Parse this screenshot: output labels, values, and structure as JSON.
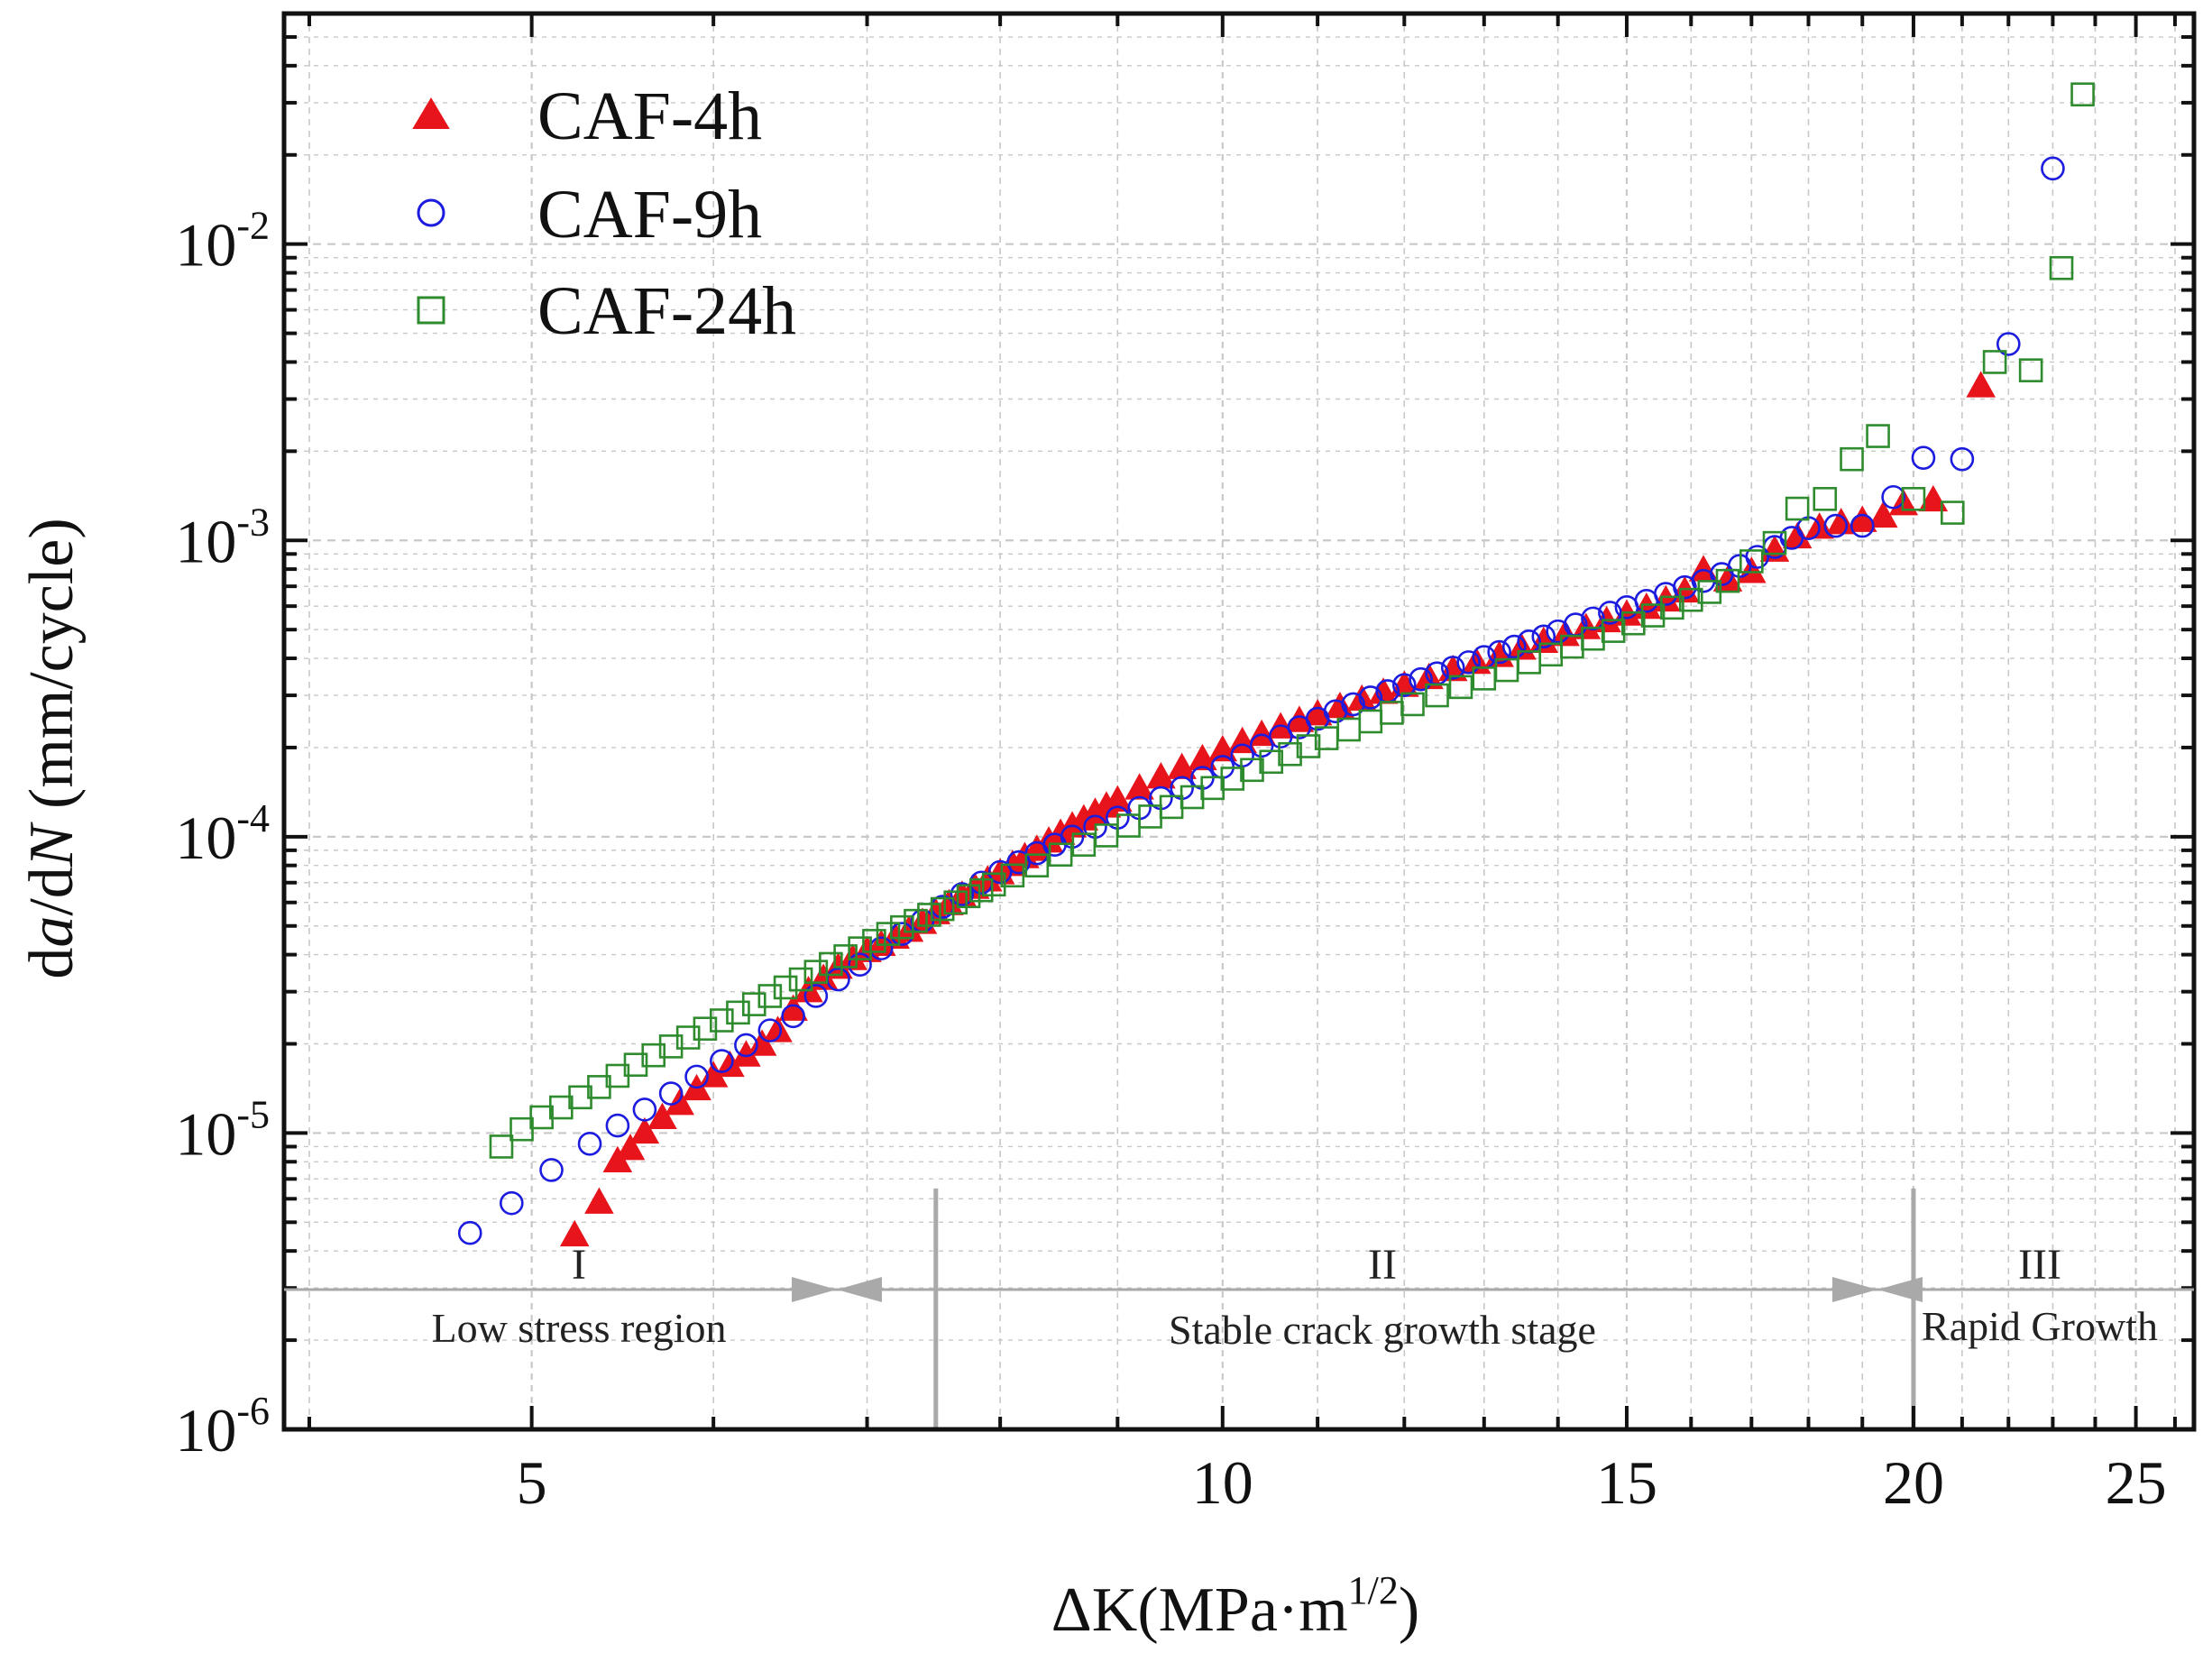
{
  "chart_data": {
    "type": "scatter",
    "x_scale": "log",
    "y_scale": "log",
    "xlim": [
      3.9,
      26.5
    ],
    "ylim": [
      1e-06,
      0.06
    ],
    "xlabel": {
      "main": "ΔK(MPa·m",
      "sup": "1/2",
      "close": ")"
    },
    "ylabel": {
      "d": "d",
      "a": "a",
      "mid": "/d",
      "N": "N",
      "units": " (mm/cycle)"
    },
    "x_ticks": [
      {
        "value": 5,
        "label": "5"
      },
      {
        "value": 10,
        "label": "10"
      },
      {
        "value": 15,
        "label": "15"
      },
      {
        "value": 20,
        "label": "20"
      },
      {
        "value": 25,
        "label": "25"
      }
    ],
    "y_ticks": [
      {
        "value": 1e-06,
        "base": "10",
        "exp": "-6"
      },
      {
        "value": 1e-05,
        "base": "10",
        "exp": "-5"
      },
      {
        "value": 0.0001,
        "base": "10",
        "exp": "-4"
      },
      {
        "value": 0.001,
        "base": "10",
        "exp": "-3"
      },
      {
        "value": 0.01,
        "base": "10",
        "exp": "-2"
      }
    ],
    "grid": true,
    "legend_position": "top-left",
    "series": [
      {
        "name": "CAF-4h",
        "marker": "triangle-filled",
        "color": "#e8141b",
        "x": [
          5.22,
          5.35,
          5.45,
          5.52,
          5.6,
          5.7,
          5.8,
          5.9,
          6.0,
          6.1,
          6.2,
          6.3,
          6.4,
          6.5,
          6.6,
          6.7,
          6.8,
          6.9,
          7.0,
          7.1,
          7.2,
          7.3,
          7.4,
          7.5,
          7.6,
          7.7,
          7.8,
          7.9,
          8.0,
          8.1,
          8.2,
          8.3,
          8.4,
          8.5,
          8.6,
          8.7,
          8.8,
          8.9,
          9.0,
          9.2,
          9.4,
          9.6,
          9.8,
          10.0,
          10.2,
          10.4,
          10.6,
          10.8,
          11.0,
          11.25,
          11.5,
          11.75,
          12.0,
          12.3,
          12.6,
          12.9,
          13.2,
          13.5,
          13.8,
          14.1,
          14.4,
          14.7,
          15.0,
          15.3,
          15.6,
          15.9,
          16.2,
          16.6,
          17.0,
          17.4,
          17.8,
          18.2,
          18.6,
          19.0,
          19.4,
          19.8,
          20.4,
          21.4
        ],
        "y": [
          4.5e-06,
          5.8e-06,
          8e-06,
          8.8e-06,
          1e-05,
          1.12e-05,
          1.25e-05,
          1.4e-05,
          1.55e-05,
          1.68e-05,
          1.82e-05,
          1.98e-05,
          2.2e-05,
          2.6e-05,
          3e-05,
          3.3e-05,
          3.6e-05,
          3.85e-05,
          4.1e-05,
          4.3e-05,
          4.55e-05,
          4.8e-05,
          5.1e-05,
          5.5e-05,
          5.9e-05,
          6.3e-05,
          6.7e-05,
          7.1e-05,
          7.5e-05,
          8e-05,
          8.5e-05,
          9e-05,
          9.6e-05,
          0.000102,
          0.000108,
          0.000114,
          0.00012,
          0.000126,
          0.000132,
          0.000145,
          0.000158,
          0.00017,
          0.000182,
          0.000195,
          0.000208,
          0.00022,
          0.000233,
          0.000245,
          0.000258,
          0.000273,
          0.000289,
          0.000305,
          0.000322,
          0.000342,
          0.000364,
          0.000385,
          0.000406,
          0.00043,
          0.000453,
          0.000478,
          0.000504,
          0.000532,
          0.00056,
          0.00059,
          0.000625,
          0.00067,
          0.00079,
          0.00073,
          0.00078,
          0.00092,
          0.00102,
          0.0011,
          0.00114,
          0.00116,
          0.0012,
          0.00132,
          0.00136,
          0.0033
        ]
      },
      {
        "name": "CAF-9h",
        "marker": "circle-open",
        "color": "#1c1ce0",
        "x": [
          4.7,
          4.9,
          5.1,
          5.3,
          5.45,
          5.6,
          5.75,
          5.9,
          6.05,
          6.2,
          6.35,
          6.5,
          6.65,
          6.8,
          6.95,
          7.1,
          7.25,
          7.4,
          7.55,
          7.7,
          7.85,
          8.0,
          8.15,
          8.3,
          8.45,
          8.6,
          8.8,
          9.0,
          9.2,
          9.4,
          9.6,
          9.8,
          10.0,
          10.2,
          10.4,
          10.6,
          10.8,
          11.0,
          11.2,
          11.4,
          11.6,
          11.8,
          12.0,
          12.2,
          12.4,
          12.6,
          12.8,
          13.0,
          13.2,
          13.4,
          13.6,
          13.8,
          14.0,
          14.25,
          14.5,
          14.75,
          15.0,
          15.3,
          15.6,
          15.9,
          16.2,
          16.5,
          16.8,
          17.1,
          17.4,
          17.7,
          18.0,
          18.5,
          19.0,
          19.6,
          20.2,
          21.0,
          22.0,
          23.0
        ],
        "y": [
          4.6e-06,
          5.8e-06,
          7.5e-06,
          9.2e-06,
          1.06e-05,
          1.2e-05,
          1.36e-05,
          1.55e-05,
          1.75e-05,
          1.98e-05,
          2.22e-05,
          2.48e-05,
          2.9e-05,
          3.3e-05,
          3.7e-05,
          4.2e-05,
          4.7e-05,
          5.2e-05,
          5.8e-05,
          6.4e-05,
          7e-05,
          7.6e-05,
          8.2e-05,
          8.8e-05,
          9.4e-05,
          0.0001,
          0.000108,
          0.000116,
          0.000125,
          0.000135,
          0.000146,
          0.000158,
          0.000172,
          0.000188,
          0.000203,
          0.000218,
          0.000234,
          0.00025,
          0.000265,
          0.00028,
          0.000295,
          0.00031,
          0.000325,
          0.00034,
          0.000356,
          0.000372,
          0.000388,
          0.000404,
          0.00042,
          0.000438,
          0.000456,
          0.000474,
          0.000493,
          0.00052,
          0.000545,
          0.00057,
          0.000595,
          0.000625,
          0.00066,
          0.000695,
          0.00073,
          0.00077,
          0.00082,
          0.00088,
          0.00095,
          0.00102,
          0.0011,
          0.00112,
          0.00112,
          0.0014,
          0.0019,
          0.00188,
          0.0046,
          0.018
        ]
      },
      {
        "name": "CAF-24h",
        "marker": "square-open",
        "color": "#2e8b2e",
        "x": [
          4.85,
          4.95,
          5.05,
          5.15,
          5.25,
          5.35,
          5.45,
          5.55,
          5.65,
          5.75,
          5.85,
          5.95,
          6.05,
          6.15,
          6.25,
          6.35,
          6.45,
          6.55,
          6.65,
          6.75,
          6.85,
          6.95,
          7.05,
          7.15,
          7.25,
          7.35,
          7.45,
          7.55,
          7.65,
          7.75,
          7.85,
          7.95,
          8.1,
          8.3,
          8.5,
          8.7,
          8.9,
          9.1,
          9.3,
          9.5,
          9.7,
          9.9,
          10.1,
          10.3,
          10.5,
          10.7,
          10.9,
          11.1,
          11.35,
          11.6,
          11.85,
          12.1,
          12.4,
          12.7,
          13.0,
          13.3,
          13.6,
          13.9,
          14.2,
          14.5,
          14.8,
          15.1,
          15.4,
          15.7,
          16.0,
          16.3,
          16.6,
          17.0,
          17.4,
          17.8,
          18.3,
          18.8,
          19.3,
          20.0,
          20.8,
          21.7,
          22.5,
          23.2,
          23.7
        ],
        "y": [
          9e-06,
          1.03e-05,
          1.13e-05,
          1.22e-05,
          1.32e-05,
          1.43e-05,
          1.56e-05,
          1.7e-05,
          1.83e-05,
          1.96e-05,
          2.1e-05,
          2.25e-05,
          2.4e-05,
          2.55e-05,
          2.72e-05,
          2.9e-05,
          3.1e-05,
          3.3e-05,
          3.5e-05,
          3.72e-05,
          3.95e-05,
          4.2e-05,
          4.45e-05,
          4.7e-05,
          4.95e-05,
          5.2e-05,
          5.45e-05,
          5.7e-05,
          6e-05,
          6.3e-05,
          6.6e-05,
          6.9e-05,
          7.4e-05,
          8e-05,
          8.7e-05,
          9.4e-05,
          0.000101,
          0.000109,
          0.000117,
          0.000126,
          0.000136,
          0.000146,
          0.000157,
          0.000168,
          0.000179,
          0.00019,
          0.000202,
          0.000215,
          0.00023,
          0.000245,
          0.000262,
          0.00028,
          0.0003,
          0.00032,
          0.000342,
          0.000365,
          0.000388,
          0.000412,
          0.000438,
          0.000466,
          0.000495,
          0.000525,
          0.000558,
          0.000593,
          0.00063,
          0.00067,
          0.00073,
          0.00085,
          0.00098,
          0.00128,
          0.00138,
          0.00188,
          0.00225,
          0.00138,
          0.00124,
          0.004,
          0.00375,
          0.0083,
          0.032
        ]
      }
    ],
    "dividers": [
      {
        "x": 7.5
      },
      {
        "x": 20.0
      }
    ],
    "regions": [
      {
        "numeral": "I",
        "label": "Low stress region",
        "x_from": 3.9,
        "x_to": 7.5
      },
      {
        "numeral": "II",
        "label": "Stable crack growth stage",
        "x_from": 7.5,
        "x_to": 20.0
      },
      {
        "numeral": "III",
        "label": "Rapid Growth",
        "x_from": 20.0,
        "x_to": 26.5
      }
    ]
  },
  "colors": {
    "axis": "#111111",
    "grid": "#c8c8c8",
    "divider": "#a9a9a9",
    "background": "#ffffff"
  }
}
